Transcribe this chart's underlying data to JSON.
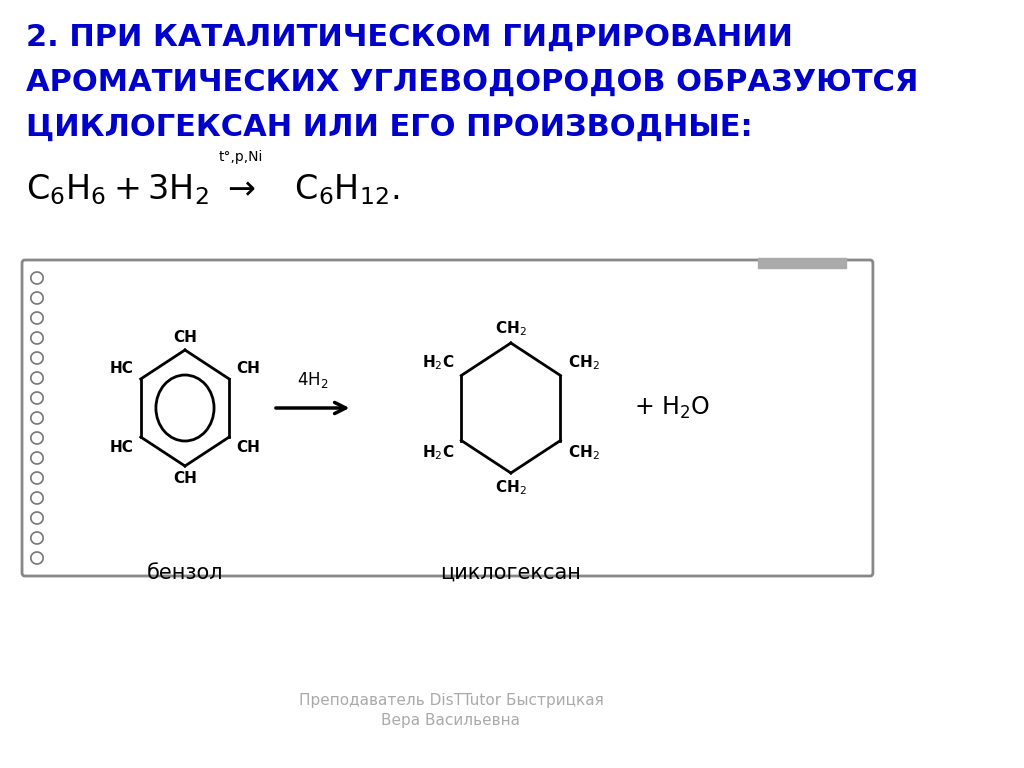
{
  "title_line1": "2. ПРИ КАТАЛИТИЧЕСКОМ ГИДРИРОВАНИИ",
  "title_line2": "АРОМАТИЧЕСКИХ УГЛЕВОДОРОДОВ ОБРАЗУЮТСЯ",
  "title_line3": "ЦИКЛОГЕКСАН ИЛИ ЕГО ПРОИЗВОДНЫЕ:",
  "title_color": "#0000CC",
  "title_fontsize": 22,
  "condition": "t°,p,Ni",
  "footer_line1": "Преподаватель DisTTutor Быстрицкая",
  "footer_line2": "Вера Васильевна",
  "footer_color": "#aaaaaa",
  "footer_fontsize": 11,
  "bg_color": "#ffffff",
  "box_color": "#888888",
  "benzene_label": "бензол",
  "cyclohexane_label": "циклогексан"
}
